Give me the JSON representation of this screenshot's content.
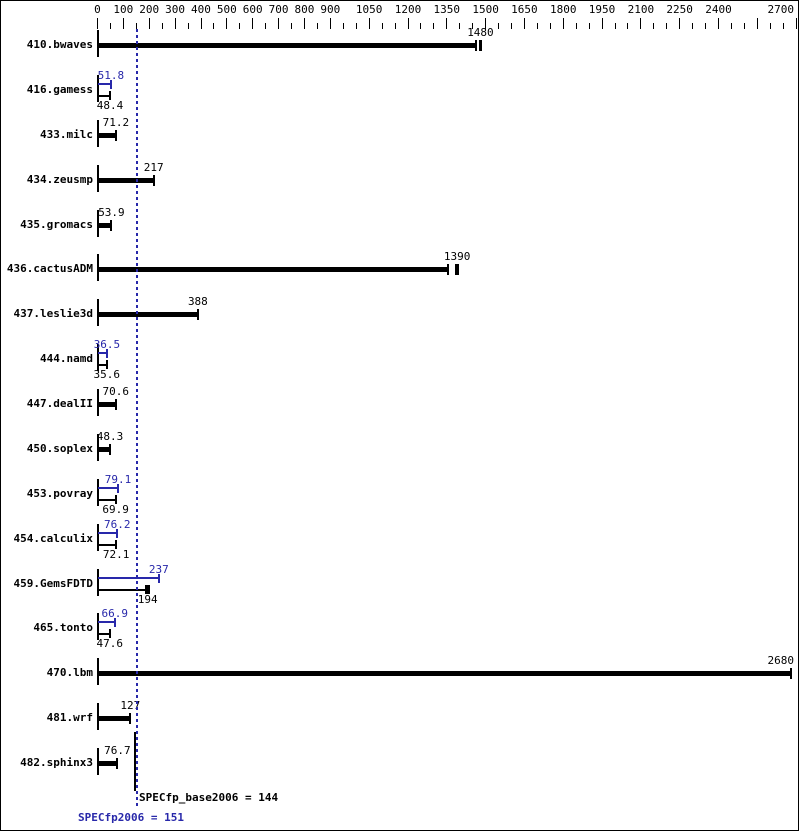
{
  "chart_data": {
    "type": "bar",
    "orientation": "horizontal",
    "title": "",
    "xlabel": "",
    "ylabel": "",
    "axis": {
      "min": 0,
      "max": 2700,
      "major_ticks": [
        0,
        100,
        200,
        300,
        400,
        500,
        600,
        700,
        800,
        900,
        1050,
        1200,
        1350,
        1500,
        1650,
        1800,
        1950,
        2100,
        2250,
        2400,
        2550,
        2700
      ],
      "unlabeled_majors": [
        2550
      ],
      "minor_step": 50,
      "position": "top",
      "grid": false
    },
    "categories": [
      "410.bwaves",
      "416.gamess",
      "433.milc",
      "434.zeusmp",
      "435.gromacs",
      "436.cactusADM",
      "437.leslie3d",
      "444.namd",
      "447.dealII",
      "450.soplex",
      "453.povray",
      "454.calculix",
      "459.GemsFDTD",
      "465.tonto",
      "470.lbm",
      "481.wrf",
      "482.sphinx3"
    ],
    "series": [
      {
        "name": "base",
        "color": "#000000",
        "values": [
          1480,
          48.4,
          71.2,
          217,
          53.9,
          1390,
          388,
          35.6,
          70.6,
          48.3,
          69.9,
          72.1,
          194,
          47.6,
          2680,
          127,
          76.7
        ]
      },
      {
        "name": "peak",
        "color": "#2828aa",
        "values": [
          null,
          51.8,
          null,
          null,
          null,
          null,
          null,
          36.5,
          null,
          null,
          79.1,
          76.2,
          237,
          66.9,
          null,
          null,
          null
        ]
      }
    ],
    "run_ticks": {
      "410.bwaves": {
        "base": [
          1463,
          1477,
          1484
        ]
      },
      "436.cactusADM": {
        "base": [
          1355,
          1384,
          1394
        ]
      },
      "459.GemsFDTD": {
        "base": [
          186,
          194,
          199
        ]
      }
    },
    "median_lines": {
      "base": {
        "value": 144,
        "style": "solid",
        "color": "#000000"
      },
      "peak": {
        "value": 151,
        "style": "dashed",
        "color": "#2828aa"
      }
    },
    "base_summary": "SPECfp_base2006 = 144",
    "peak_summary": "SPECfp2006 = 151",
    "colors": {
      "base": "#000000",
      "peak": "#2828aa"
    }
  }
}
